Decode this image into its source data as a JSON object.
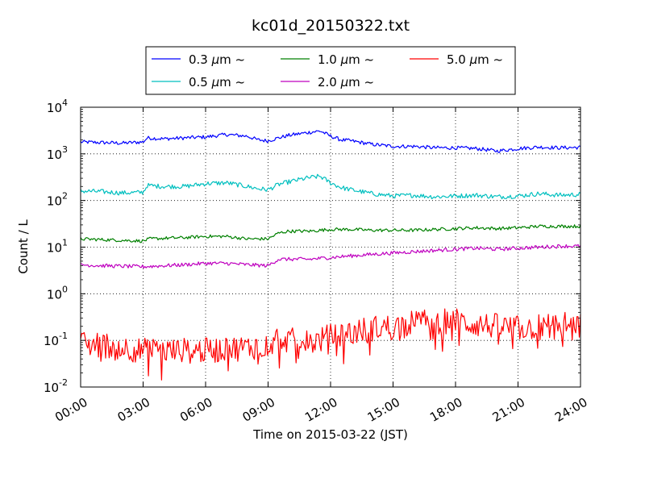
{
  "chart_data": {
    "type": "line",
    "title": "kc01d_20150322.txt",
    "xlabel": "Time on 2015-03-22 (JST)",
    "ylabel": "Count / L",
    "x_ticks": [
      "00:00",
      "03:00",
      "06:00",
      "09:00",
      "12:00",
      "15:00",
      "18:00",
      "21:00",
      "24:00"
    ],
    "x_range_hours": [
      0,
      24
    ],
    "y_scale": "log",
    "ylim": [
      0.01,
      10000
    ],
    "y_ticks": [
      {
        "base": "10",
        "exp": "-2",
        "value": 0.01
      },
      {
        "base": "10",
        "exp": "-1",
        "value": 0.1
      },
      {
        "base": "10",
        "exp": "0",
        "value": 1
      },
      {
        "base": "10",
        "exp": "1",
        "value": 10
      },
      {
        "base": "10",
        "exp": "2",
        "value": 100
      },
      {
        "base": "10",
        "exp": "3",
        "value": 1000
      },
      {
        "base": "10",
        "exp": "4",
        "value": 10000
      }
    ],
    "grid": true,
    "legend_position": "top-center",
    "series": [
      {
        "name": "0.3 μm ~",
        "label_text": "0.3",
        "color": "#0000ff",
        "noise": 0.04,
        "points": [
          [
            0,
            1800
          ],
          [
            1,
            1750
          ],
          [
            2,
            1700
          ],
          [
            3,
            1800
          ],
          [
            3.2,
            2200
          ],
          [
            4,
            2100
          ],
          [
            5,
            2200
          ],
          [
            6,
            2300
          ],
          [
            7,
            2600
          ],
          [
            8,
            2400
          ],
          [
            8.5,
            2000
          ],
          [
            9,
            1900
          ],
          [
            9.5,
            2200
          ],
          [
            10,
            2500
          ],
          [
            10.5,
            2700
          ],
          [
            11,
            2900
          ],
          [
            11.5,
            3100
          ],
          [
            12,
            2400
          ],
          [
            12.5,
            2000
          ],
          [
            13,
            1900
          ],
          [
            14,
            1600
          ],
          [
            15,
            1450
          ],
          [
            16,
            1450
          ],
          [
            17,
            1350
          ],
          [
            18,
            1350
          ],
          [
            19,
            1300
          ],
          [
            20,
            1150
          ],
          [
            21,
            1300
          ],
          [
            22,
            1400
          ],
          [
            23,
            1350
          ],
          [
            24,
            1380
          ]
        ]
      },
      {
        "name": "0.5 μm ~",
        "label_text": "0.5",
        "color": "#00bfbf",
        "noise": 0.05,
        "points": [
          [
            0,
            160
          ],
          [
            1,
            155
          ],
          [
            2,
            145
          ],
          [
            3,
            150
          ],
          [
            3.2,
            210
          ],
          [
            4,
            200
          ],
          [
            5,
            200
          ],
          [
            6,
            230
          ],
          [
            7,
            240
          ],
          [
            8,
            200
          ],
          [
            8.5,
            180
          ],
          [
            9,
            170
          ],
          [
            9.5,
            220
          ],
          [
            10,
            250
          ],
          [
            10.5,
            280
          ],
          [
            11,
            310
          ],
          [
            11.5,
            330
          ],
          [
            12,
            240
          ],
          [
            12.5,
            190
          ],
          [
            13,
            170
          ],
          [
            14,
            140
          ],
          [
            15,
            125
          ],
          [
            16,
            130
          ],
          [
            17,
            120
          ],
          [
            18,
            125
          ],
          [
            19,
            130
          ],
          [
            20,
            120
          ],
          [
            21,
            125
          ],
          [
            22,
            140
          ],
          [
            23,
            130
          ],
          [
            24,
            135
          ]
        ]
      },
      {
        "name": "1.0 μm ~",
        "label_text": "1.0",
        "color": "#008000",
        "noise": 0.035,
        "points": [
          [
            0,
            15
          ],
          [
            1,
            14.5
          ],
          [
            2,
            14
          ],
          [
            3,
            13.5
          ],
          [
            3.3,
            15
          ],
          [
            4,
            15.5
          ],
          [
            5,
            16
          ],
          [
            6,
            17
          ],
          [
            7,
            17
          ],
          [
            8,
            15
          ],
          [
            9,
            15
          ],
          [
            9.5,
            20
          ],
          [
            10,
            22
          ],
          [
            11,
            22
          ],
          [
            12,
            24
          ],
          [
            13,
            24
          ],
          [
            14,
            23
          ],
          [
            15,
            23
          ],
          [
            16,
            23
          ],
          [
            17,
            24
          ],
          [
            18,
            25
          ],
          [
            19,
            26
          ],
          [
            20,
            25
          ],
          [
            21,
            26
          ],
          [
            22,
            28
          ],
          [
            23,
            28
          ],
          [
            24,
            28
          ]
        ]
      },
      {
        "name": "2.0 μm ~",
        "label_text": "2.0",
        "color": "#bf00bf",
        "noise": 0.04,
        "points": [
          [
            0,
            4.2
          ],
          [
            1,
            4
          ],
          [
            2,
            3.9
          ],
          [
            3,
            3.8
          ],
          [
            4,
            4
          ],
          [
            5,
            4.2
          ],
          [
            6,
            4.5
          ],
          [
            7,
            4.5
          ],
          [
            8,
            4.2
          ],
          [
            9,
            4
          ],
          [
            9.5,
            5.5
          ],
          [
            10,
            5.5
          ],
          [
            11,
            5.5
          ],
          [
            12,
            6
          ],
          [
            13,
            6.5
          ],
          [
            14,
            7
          ],
          [
            15,
            7.5
          ],
          [
            16,
            8
          ],
          [
            17,
            8.5
          ],
          [
            18,
            9
          ],
          [
            19,
            9.5
          ],
          [
            20,
            9
          ],
          [
            21,
            9.5
          ],
          [
            22,
            10
          ],
          [
            23,
            10.5
          ],
          [
            24,
            10.5
          ]
        ]
      },
      {
        "name": "5.0 μm ~",
        "label_text": "5.0",
        "color": "#ff0000",
        "noise": 0.28,
        "points": [
          [
            0,
            0.08
          ],
          [
            1,
            0.08
          ],
          [
            2,
            0.07
          ],
          [
            3,
            0.06
          ],
          [
            4,
            0.06
          ],
          [
            5,
            0.06
          ],
          [
            6,
            0.06
          ],
          [
            7,
            0.065
          ],
          [
            8,
            0.07
          ],
          [
            9,
            0.08
          ],
          [
            9.5,
            0.12
          ],
          [
            10,
            0.1
          ],
          [
            11,
            0.09
          ],
          [
            12,
            0.12
          ],
          [
            13,
            0.15
          ],
          [
            14,
            0.18
          ],
          [
            15,
            0.2
          ],
          [
            16,
            0.24
          ],
          [
            17,
            0.26
          ],
          [
            18,
            0.26
          ],
          [
            19,
            0.22
          ],
          [
            20,
            0.2
          ],
          [
            21,
            0.18
          ],
          [
            22,
            0.2
          ],
          [
            23,
            0.22
          ],
          [
            24,
            0.2
          ]
        ]
      }
    ]
  }
}
